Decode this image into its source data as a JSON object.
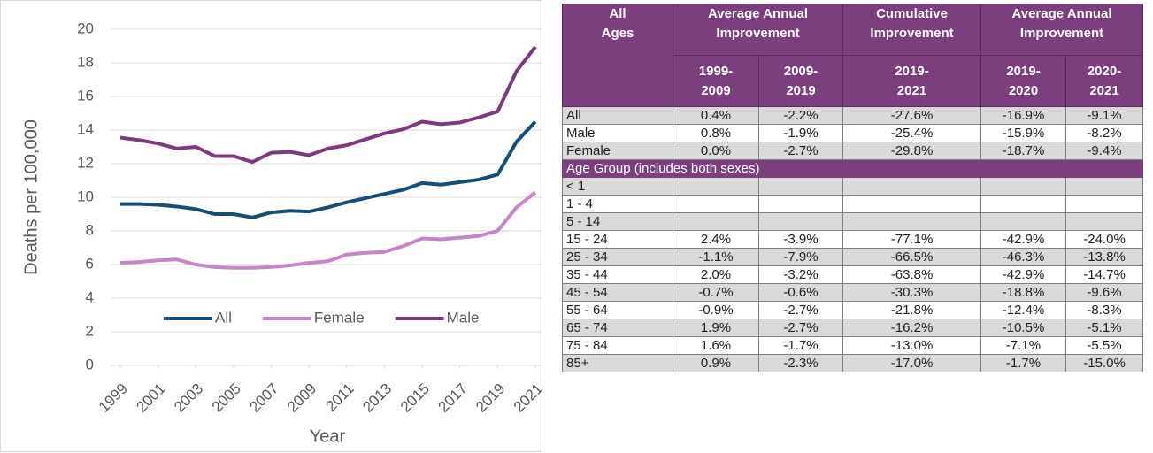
{
  "chart_data": {
    "type": "line",
    "y_label": "Deaths per 100,000",
    "x_label": "Year",
    "x": [
      1999,
      2000,
      2001,
      2002,
      2003,
      2004,
      2005,
      2006,
      2007,
      2008,
      2009,
      2010,
      2011,
      2012,
      2013,
      2014,
      2015,
      2016,
      2017,
      2018,
      2019,
      2020,
      2021
    ],
    "xlim": [
      1999,
      2021
    ],
    "xticks": [
      1999,
      2001,
      2003,
      2005,
      2007,
      2009,
      2011,
      2013,
      2015,
      2017,
      2019,
      2021
    ],
    "ylim": [
      0,
      20
    ],
    "yticks": [
      0,
      2,
      4,
      6,
      8,
      10,
      12,
      14,
      16,
      18,
      20
    ],
    "grid": true,
    "legend": "lower center",
    "series": [
      {
        "name": "All",
        "color": "#154f75",
        "values": [
          9.6,
          9.6,
          9.55,
          9.45,
          9.3,
          9.0,
          9.0,
          8.8,
          9.1,
          9.2,
          9.15,
          9.4,
          9.7,
          9.95,
          10.2,
          10.45,
          10.85,
          10.75,
          10.9,
          11.05,
          11.35,
          13.3,
          14.5
        ]
      },
      {
        "name": "Female",
        "color": "#c387c7",
        "values": [
          6.1,
          6.15,
          6.25,
          6.3,
          6.0,
          5.85,
          5.8,
          5.8,
          5.85,
          5.95,
          6.1,
          6.2,
          6.6,
          6.7,
          6.75,
          7.1,
          7.55,
          7.5,
          7.6,
          7.7,
          8.0,
          9.4,
          10.3
        ]
      },
      {
        "name": "Male",
        "color": "#7b3a7a",
        "values": [
          13.55,
          13.4,
          13.2,
          12.9,
          13.0,
          12.45,
          12.45,
          12.1,
          12.65,
          12.7,
          12.5,
          12.9,
          13.1,
          13.45,
          13.8,
          14.05,
          14.5,
          14.35,
          14.45,
          14.75,
          15.1,
          17.5,
          18.95
        ]
      }
    ]
  },
  "table": {
    "header_row1": [
      "All Ages",
      "Average Annual Improvement",
      "Cumulative Improvement",
      "Average Annual Improvement"
    ],
    "header_row2": [
      "1999-\n2009",
      "2009-\n2019",
      "2019-\n2021",
      "2019-\n2020",
      "2020-\n2021"
    ],
    "sex_rows": [
      [
        "All",
        "0.4%",
        "-2.2%",
        "-27.6%",
        "-16.9%",
        "-9.1%"
      ],
      [
        "Male",
        "0.8%",
        "-1.9%",
        "-25.4%",
        "-15.9%",
        "-8.2%"
      ],
      [
        "Female",
        "0.0%",
        "-2.7%",
        "-29.8%",
        "-18.7%",
        "-9.4%"
      ]
    ],
    "age_group_title": "Age Group (includes both sexes)",
    "age_rows": [
      [
        "< 1"
      ],
      [
        "1 - 4"
      ],
      [
        "5 - 14"
      ],
      [
        "15 - 24",
        "2.4%",
        "-3.9%",
        "-77.1%",
        "-42.9%",
        "-24.0%"
      ],
      [
        "25 - 34",
        "-1.1%",
        "-7.9%",
        "-66.5%",
        "-46.3%",
        "-13.8%"
      ],
      [
        "35 - 44",
        "2.0%",
        "-3.2%",
        "-63.8%",
        "-42.9%",
        "-14.7%"
      ],
      [
        "45 - 54",
        "-0.7%",
        "-0.6%",
        "-30.3%",
        "-18.8%",
        "-9.6%"
      ],
      [
        "55 - 64",
        "-0.9%",
        "-2.7%",
        "-21.8%",
        "-12.4%",
        "-8.3%"
      ],
      [
        "65 - 74",
        "1.9%",
        "-2.7%",
        "-16.2%",
        "-10.5%",
        "-5.1%"
      ],
      [
        "75 - 84",
        "1.6%",
        "-1.7%",
        "-13.0%",
        "-7.1%",
        "-5.5%"
      ],
      [
        "85+",
        "0.9%",
        "-2.3%",
        "-17.0%",
        "-1.7%",
        "-15.0%"
      ]
    ]
  }
}
